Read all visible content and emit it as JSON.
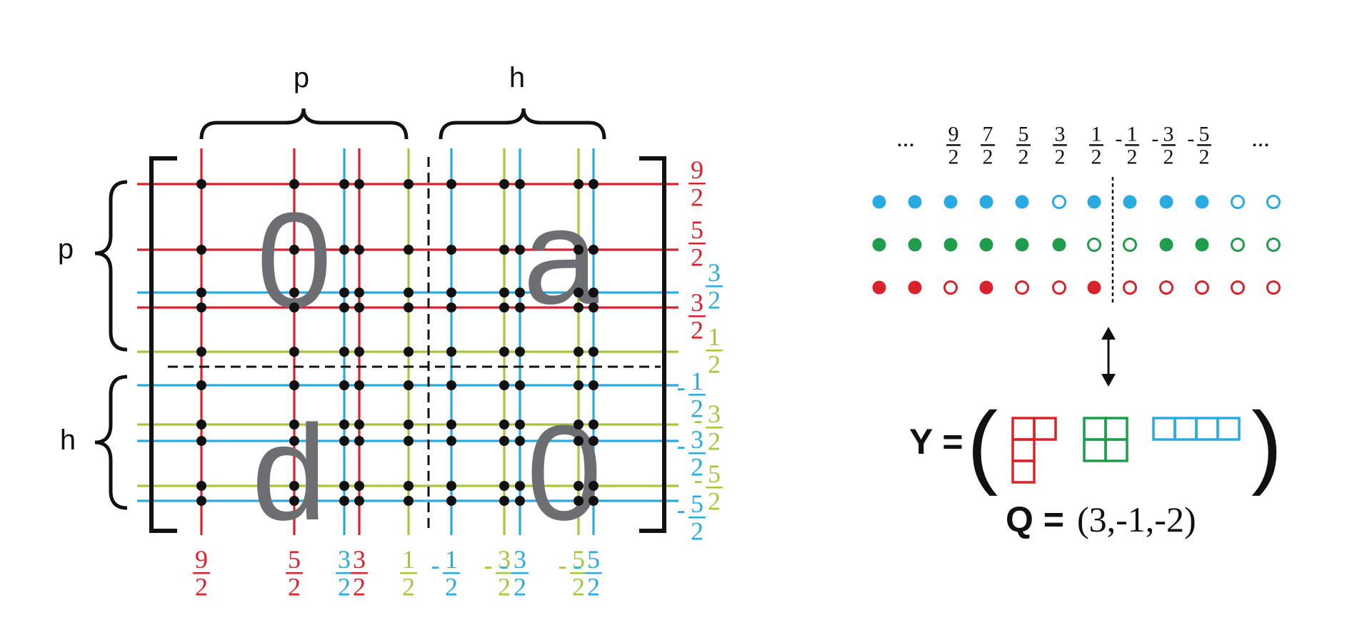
{
  "colors": {
    "red": "#d9222c",
    "blue": "#29abe2",
    "green": "#a6c73c",
    "darkgreen": "#1f9c4c",
    "black": "#111111",
    "gray": "#6d6e71"
  },
  "matrix": {
    "brace_top_p": "p",
    "brace_top_h": "h",
    "brace_left_p": "p",
    "brace_left_h": "h",
    "block_labels": {
      "top_left": "0",
      "top_right": "a",
      "bottom_left": "d",
      "bottom_right": "0"
    },
    "columns": [
      {
        "color": "red",
        "sign": "",
        "num": "9",
        "den": "2"
      },
      {
        "color": "red",
        "sign": "",
        "num": "5",
        "den": "2"
      },
      {
        "color": "blue",
        "sign": "",
        "num": "3",
        "den": "2"
      },
      {
        "color": "red",
        "sign": "",
        "num": "3",
        "den": "2"
      },
      {
        "color": "green",
        "sign": "",
        "num": "1",
        "den": "2"
      },
      {
        "color": "blue",
        "sign": "-",
        "num": "1",
        "den": "2"
      },
      {
        "color": "green",
        "sign": "-",
        "num": "3",
        "den": "2"
      },
      {
        "color": "blue",
        "sign": "-",
        "num": "3",
        "den": "2"
      },
      {
        "color": "green",
        "sign": "-",
        "num": "5",
        "den": "2"
      },
      {
        "color": "blue",
        "sign": "-",
        "num": "5",
        "den": "2"
      }
    ],
    "rows": [
      {
        "color": "red",
        "sign": "",
        "num": "9",
        "den": "2"
      },
      {
        "color": "red",
        "sign": "",
        "num": "5",
        "den": "2"
      },
      {
        "color": "blue",
        "sign": "",
        "num": "3",
        "den": "2"
      },
      {
        "color": "red",
        "sign": "",
        "num": "3",
        "den": "2"
      },
      {
        "color": "green",
        "sign": "",
        "num": "1",
        "den": "2"
      },
      {
        "color": "blue",
        "sign": "-",
        "num": "1",
        "den": "2"
      },
      {
        "color": "green",
        "sign": "-",
        "num": "3",
        "den": "2"
      },
      {
        "color": "blue",
        "sign": "-",
        "num": "3",
        "den": "2"
      },
      {
        "color": "green",
        "sign": "-",
        "num": "5",
        "den": "2"
      },
      {
        "color": "blue",
        "sign": "-",
        "num": "5",
        "den": "2"
      }
    ]
  },
  "maya": {
    "ellipsis_left": "...",
    "ellipsis_right": "...",
    "labels": [
      {
        "sign": "",
        "num": "9",
        "den": "2"
      },
      {
        "sign": "",
        "num": "7",
        "den": "2"
      },
      {
        "sign": "",
        "num": "5",
        "den": "2"
      },
      {
        "sign": "",
        "num": "3",
        "den": "2"
      },
      {
        "sign": "",
        "num": "1",
        "den": "2"
      },
      {
        "sign": "-",
        "num": "1",
        "den": "2"
      },
      {
        "sign": "-",
        "num": "3",
        "den": "2"
      },
      {
        "sign": "-",
        "num": "5",
        "den": "2"
      }
    ],
    "rows": [
      {
        "color": "blue",
        "filled": [
          1,
          1,
          1,
          1,
          1,
          0,
          1,
          1,
          1,
          1,
          0,
          0
        ]
      },
      {
        "color": "darkgreen",
        "filled": [
          1,
          1,
          1,
          1,
          1,
          1,
          0,
          0,
          1,
          1,
          0,
          0
        ]
      },
      {
        "color": "red",
        "filled": [
          1,
          1,
          0,
          1,
          0,
          0,
          1,
          0,
          0,
          0,
          0,
          0
        ]
      }
    ]
  },
  "formula": {
    "y_label": "Y =",
    "open_paren": "(",
    "close_paren": ")",
    "q_label": "Q =",
    "q_value": "(3,-1,-2)",
    "young": [
      {
        "color": "red",
        "rows": [
          2,
          1,
          1
        ]
      },
      {
        "color": "darkgreen",
        "rows": [
          2,
          2
        ]
      },
      {
        "color": "blue",
        "rows": [
          4
        ]
      }
    ]
  }
}
